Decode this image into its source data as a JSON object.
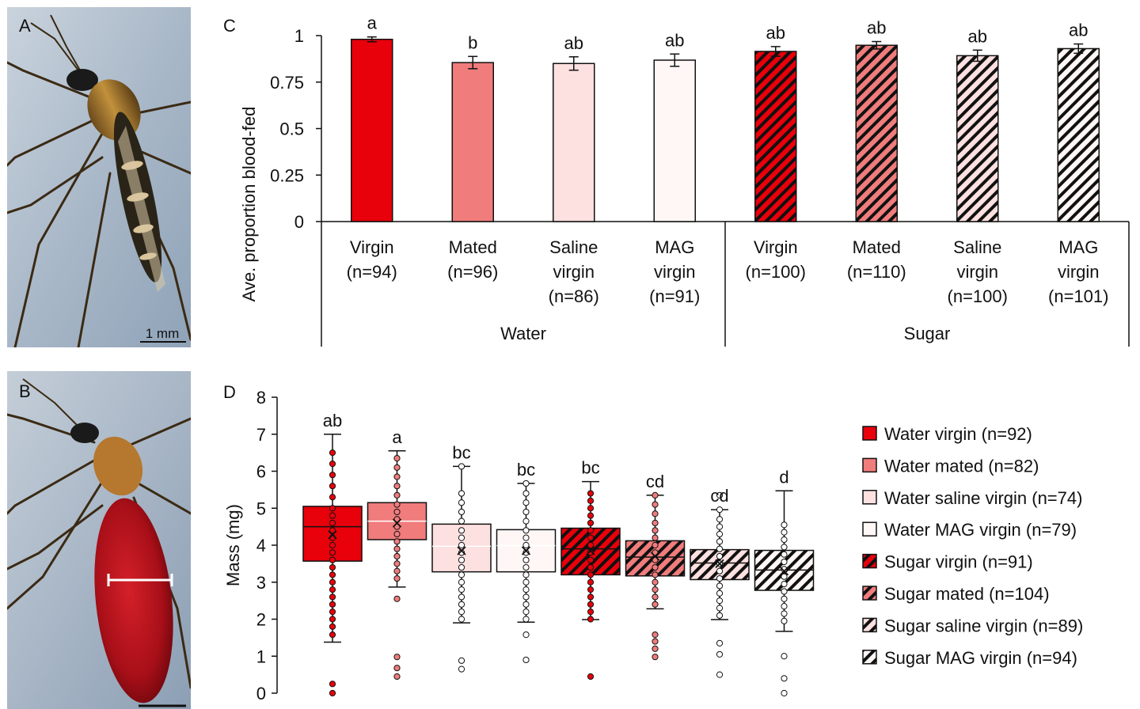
{
  "panels": {
    "a": "A",
    "b": "B",
    "c": "C",
    "d": "D"
  },
  "photo_a": {
    "scale_label": "1 mm"
  },
  "colors": {
    "virgin": "#e8000b",
    "mated": "#f07c7c",
    "saline": "#fde0e0",
    "mag": "#fff7f6",
    "stroke": "#111111",
    "photo_bg": "#b8c4d0",
    "blood": "#b0121a"
  },
  "chart_data": [
    {
      "type": "bar",
      "panel": "C",
      "ylabel": "Ave. proportion blood-fed",
      "ylim": [
        0,
        1
      ],
      "yticks": [
        "0",
        "0.25",
        "0.5",
        "0.75",
        "1"
      ],
      "groups": [
        {
          "name": "Water",
          "categories": [
            {
              "lines": [
                "Virgin",
                "(n=94)"
              ],
              "value": 0.98,
              "err": 0.013,
              "letter": "a",
              "fill": "virgin",
              "hatch": false
            },
            {
              "lines": [
                "Mated",
                "(n=96)"
              ],
              "value": 0.855,
              "err": 0.033,
              "letter": "b",
              "fill": "mated",
              "hatch": false
            },
            {
              "lines": [
                "Saline",
                "virgin",
                "(n=86)"
              ],
              "value": 0.85,
              "err": 0.036,
              "letter": "ab",
              "fill": "saline",
              "hatch": false
            },
            {
              "lines": [
                "MAG",
                "virgin",
                "(n=91)"
              ],
              "value": 0.868,
              "err": 0.033,
              "letter": "ab",
              "fill": "mag",
              "hatch": false
            }
          ]
        },
        {
          "name": "Sugar",
          "categories": [
            {
              "lines": [
                "Virgin",
                "(n=100)"
              ],
              "value": 0.915,
              "err": 0.026,
              "letter": "ab",
              "fill": "virgin",
              "hatch": true
            },
            {
              "lines": [
                "Mated",
                "(n=110)"
              ],
              "value": 0.948,
              "err": 0.02,
              "letter": "ab",
              "fill": "mated",
              "hatch": true
            },
            {
              "lines": [
                "Saline",
                "virgin",
                "(n=100)"
              ],
              "value": 0.892,
              "err": 0.03,
              "letter": "ab",
              "fill": "saline",
              "hatch": true
            },
            {
              "lines": [
                "MAG",
                "virgin",
                "(n=101)"
              ],
              "value": 0.93,
              "err": 0.025,
              "letter": "ab",
              "fill": "mag",
              "hatch": true
            }
          ]
        }
      ]
    },
    {
      "type": "boxplot",
      "panel": "D",
      "ylabel": "Mass (mg)",
      "ylim": [
        0,
        8
      ],
      "yticks": [
        "0",
        "1",
        "2",
        "3",
        "4",
        "5",
        "6",
        "7",
        "8"
      ],
      "series": [
        {
          "name": "Water virgin (n=92)",
          "fill": "virgin",
          "hatch": false,
          "letter": "ab",
          "whisker_low": 1.38,
          "q1": 3.57,
          "median": 4.5,
          "mean": 4.28,
          "q3": 5.05,
          "whisker_high": 7.0,
          "points": [
            0,
            0.25,
            1.58,
            6.5,
            6.2,
            5.9,
            5.6,
            5.3,
            5.0,
            4.8,
            4.6,
            4.4,
            4.2,
            4.0,
            3.8,
            3.6,
            3.4,
            3.2,
            3.0,
            2.8,
            2.6,
            2.4,
            2.2,
            2.0,
            1.8
          ]
        },
        {
          "name": "Water mated (n=82)",
          "fill": "mated",
          "hatch": false,
          "letter": "a",
          "whisker_low": 2.87,
          "q1": 4.15,
          "median": 4.65,
          "mean": 4.6,
          "q3": 5.15,
          "whisker_high": 6.55,
          "points": [
            0.45,
            0.68,
            0.98,
            2.55,
            6.35,
            6.1,
            5.85,
            5.6,
            5.35,
            5.1,
            4.9,
            4.7,
            4.5,
            4.3,
            4.1,
            3.9,
            3.7,
            3.5,
            3.3,
            3.1
          ]
        },
        {
          "name": "Water saline virgin (n=74)",
          "fill": "saline",
          "hatch": false,
          "letter": "bc",
          "whisker_low": 1.9,
          "q1": 3.28,
          "median": 3.97,
          "mean": 3.85,
          "q3": 4.57,
          "whisker_high": 6.13,
          "points": [
            0.65,
            0.88,
            6.13,
            5.4,
            5.15,
            4.9,
            4.65,
            4.4,
            4.2,
            4.0,
            3.8,
            3.6,
            3.4,
            3.2,
            3.0,
            2.8,
            2.6,
            2.4,
            2.2,
            2.0
          ]
        },
        {
          "name": "Water MAG virgin (n=79)",
          "fill": "mag",
          "hatch": false,
          "letter": "bc",
          "whisker_low": 1.92,
          "q1": 3.28,
          "median": 3.99,
          "mean": 3.85,
          "q3": 4.42,
          "whisker_high": 5.67,
          "points": [
            0.9,
            1.58,
            5.67,
            5.4,
            5.15,
            4.9,
            4.65,
            4.4,
            4.2,
            4.0,
            3.8,
            3.6,
            3.4,
            3.2,
            3.0,
            2.8,
            2.6,
            2.4,
            2.2,
            2.0
          ]
        },
        {
          "name": "Sugar virgin (n=91)",
          "fill": "virgin",
          "hatch": true,
          "letter": "bc",
          "whisker_low": 1.99,
          "q1": 3.2,
          "median": 3.9,
          "mean": 3.85,
          "q3": 4.46,
          "whisker_high": 5.72,
          "points": [
            0.45,
            5.4,
            5.2,
            5.0,
            4.8,
            4.6,
            4.4,
            4.2,
            4.0,
            3.8,
            3.6,
            3.4,
            3.2,
            3.0,
            2.8,
            2.6,
            2.4,
            2.2,
            2.0
          ]
        },
        {
          "name": "Sugar mated (n=104)",
          "fill": "mated",
          "hatch": true,
          "letter": "cd",
          "whisker_low": 2.28,
          "q1": 3.17,
          "median": 3.68,
          "mean": 3.7,
          "q3": 4.12,
          "whisker_high": 5.35,
          "points": [
            0.98,
            1.2,
            1.4,
            1.58,
            5.35,
            5.1,
            4.85,
            4.6,
            4.4,
            4.2,
            4.0,
            3.8,
            3.6,
            3.4,
            3.2,
            3.0,
            2.8,
            2.6,
            2.4
          ]
        },
        {
          "name": "Sugar saline virgin (n=89)",
          "fill": "saline",
          "hatch": true,
          "letter": "cd",
          "whisker_low": 1.99,
          "q1": 3.07,
          "median": 3.52,
          "mean": 3.5,
          "q3": 3.88,
          "whisker_high": 4.96,
          "points": [
            0.5,
            1.05,
            1.35,
            5.35,
            4.96,
            4.7,
            4.5,
            4.3,
            4.1,
            3.9,
            3.7,
            3.5,
            3.3,
            3.1,
            2.9,
            2.7,
            2.5,
            2.3,
            2.1
          ]
        },
        {
          "name": "Sugar MAG virgin (n=94)",
          "fill": "mag",
          "hatch": true,
          "letter": "d",
          "whisker_low": 1.67,
          "q1": 2.78,
          "median": 3.33,
          "mean": 3.3,
          "q3": 3.86,
          "whisker_high": 5.47,
          "points": [
            0,
            0.4,
            1.0,
            4.55,
            4.35,
            4.15,
            3.95,
            3.75,
            3.55,
            3.35,
            3.15,
            2.95,
            2.75,
            2.55,
            2.35,
            2.15,
            1.95
          ]
        }
      ]
    }
  ]
}
